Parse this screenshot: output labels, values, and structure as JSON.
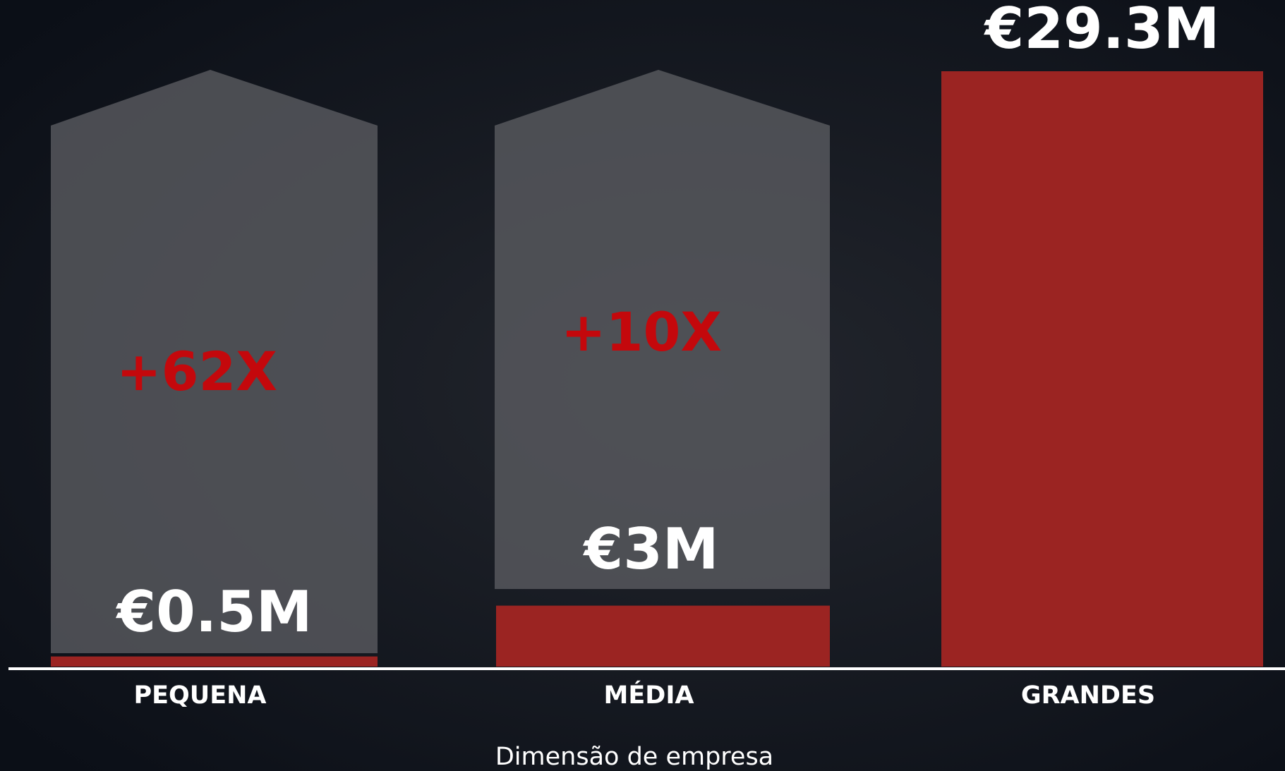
{
  "chart_data": {
    "type": "bar",
    "categories": [
      "PEQUENA",
      "MÉDIA",
      "GRANDES"
    ],
    "values": [
      0.5,
      3,
      29.3
    ],
    "value_labels": [
      "€0.5M",
      "€3M",
      "€29.3M"
    ],
    "color": "#9b2422",
    "ylim": [
      0,
      29.3
    ],
    "x_label": "Dimensão de empresa",
    "annotations": [
      "+62X",
      "+10X"
    ]
  }
}
